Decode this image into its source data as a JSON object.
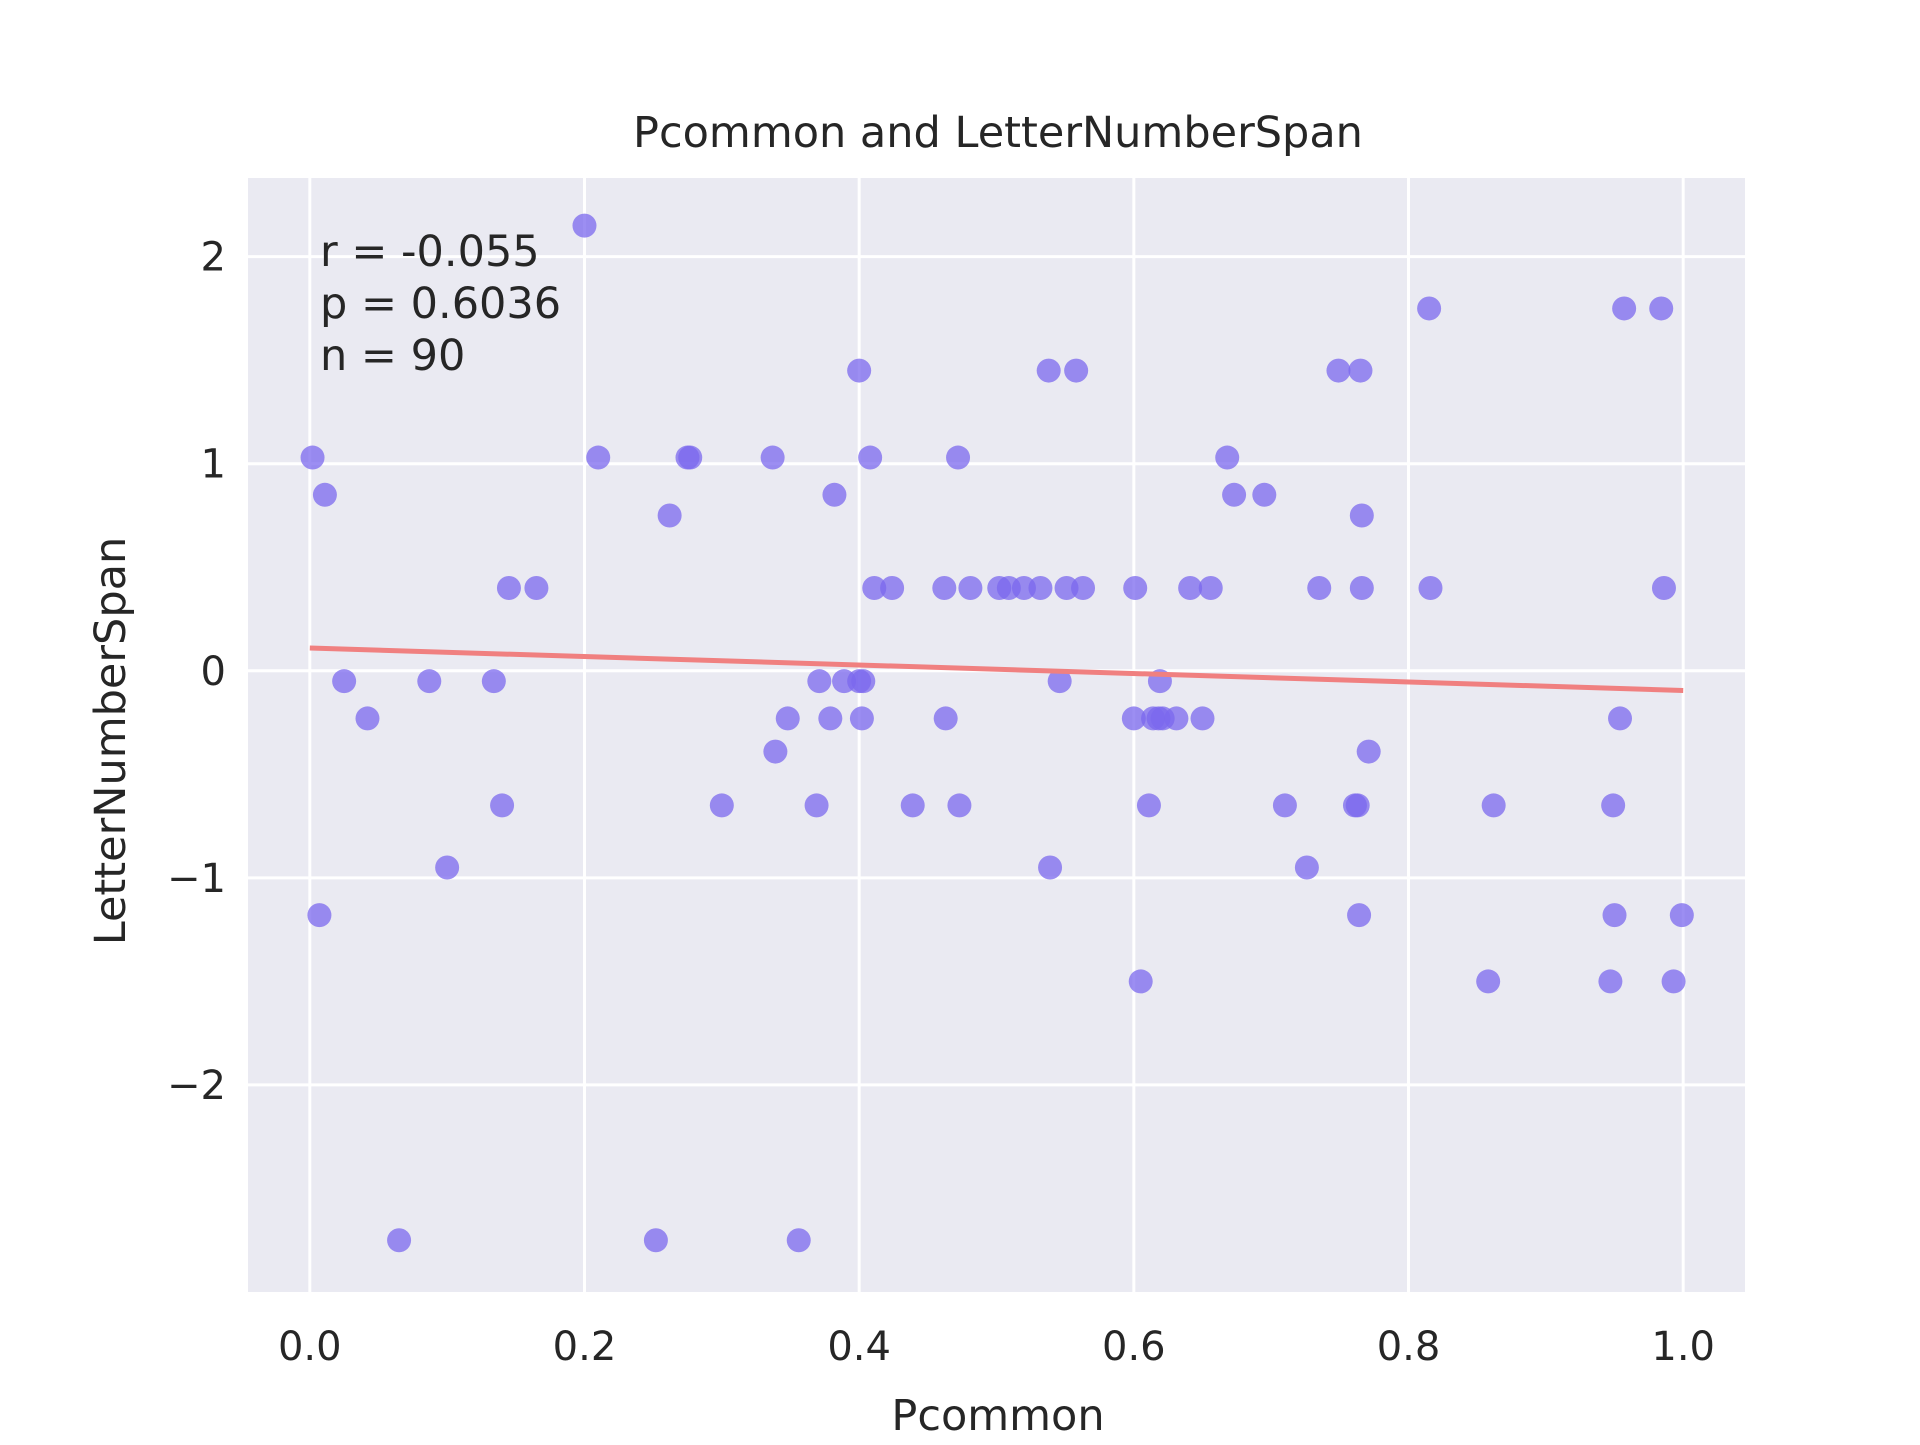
{
  "chart_data": {
    "type": "scatter",
    "title": "Pcommon and LetterNumberSpan",
    "xlabel": "Pcommon",
    "ylabel": "LetterNumberSpan",
    "xlim": [
      -0.045,
      1.045
    ],
    "ylim": [
      -3.0,
      2.38
    ],
    "xticks": [
      0.0,
      0.2,
      0.4,
      0.6,
      0.8,
      1.0
    ],
    "xtick_labels": [
      "0.0",
      "0.2",
      "0.4",
      "0.6",
      "0.8",
      "1.0"
    ],
    "yticks": [
      -2,
      -1,
      0,
      1,
      2
    ],
    "ytick_labels": [
      "−2",
      "−1",
      "0",
      "1",
      "2"
    ],
    "grid": true,
    "background": "#eaeaf2",
    "point_color": "#7b68ee",
    "line_color": "#f08080",
    "annotations": [
      "r = -0.055",
      "p = 0.6036",
      "n = 90"
    ],
    "regression": {
      "x": [
        0.0,
        1.0
      ],
      "y": [
        0.11,
        -0.095
      ]
    },
    "points": {
      "x": [
        0.002,
        0.007,
        0.011,
        0.025,
        0.042,
        0.065,
        0.087,
        0.1,
        0.134,
        0.14,
        0.145,
        0.165,
        0.2,
        0.21,
        0.252,
        0.262,
        0.275,
        0.277,
        0.3,
        0.337,
        0.339,
        0.348,
        0.356,
        0.369,
        0.371,
        0.379,
        0.382,
        0.389,
        0.4,
        0.4,
        0.402,
        0.403,
        0.408,
        0.411,
        0.424,
        0.439,
        0.462,
        0.463,
        0.472,
        0.473,
        0.481,
        0.502,
        0.509,
        0.52,
        0.532,
        0.538,
        0.539,
        0.546,
        0.551,
        0.558,
        0.563,
        0.6,
        0.601,
        0.605,
        0.611,
        0.614,
        0.618,
        0.619,
        0.621,
        0.631,
        0.641,
        0.65,
        0.656,
        0.668,
        0.673,
        0.695,
        0.71,
        0.726,
        0.735,
        0.749,
        0.761,
        0.763,
        0.764,
        0.765,
        0.766,
        0.766,
        0.771,
        0.815,
        0.816,
        0.858,
        0.862,
        0.947,
        0.949,
        0.95,
        0.954,
        0.957,
        0.984,
        0.986,
        0.993,
        0.999
      ],
      "y": [
        1.03,
        -1.18,
        0.85,
        -0.05,
        -0.23,
        -2.75,
        -0.05,
        -0.95,
        -0.05,
        -0.65,
        0.4,
        0.4,
        2.15,
        1.03,
        -2.75,
        0.75,
        1.03,
        1.03,
        -0.65,
        1.03,
        -0.39,
        -0.23,
        -2.75,
        -0.65,
        -0.05,
        -0.23,
        0.85,
        -0.05,
        1.45,
        -0.05,
        -0.23,
        -0.05,
        1.03,
        0.4,
        0.4,
        -0.65,
        0.4,
        -0.23,
        1.03,
        -0.65,
        0.4,
        0.4,
        0.4,
        0.4,
        0.4,
        1.45,
        -0.95,
        -0.05,
        0.4,
        1.45,
        0.4,
        -0.23,
        0.4,
        -1.5,
        -0.65,
        -0.23,
        -0.23,
        -0.05,
        -0.23,
        -0.23,
        0.4,
        -0.23,
        0.4,
        1.03,
        0.85,
        0.85,
        -0.65,
        -0.95,
        0.4,
        1.45,
        -0.65,
        -0.65,
        -1.18,
        1.45,
        0.75,
        0.4,
        -0.39,
        1.75,
        0.4,
        -1.5,
        -0.65,
        -1.5,
        -0.65,
        -1.18,
        -0.23,
        1.75,
        1.75,
        0.4,
        -1.5,
        -1.18
      ]
    }
  }
}
